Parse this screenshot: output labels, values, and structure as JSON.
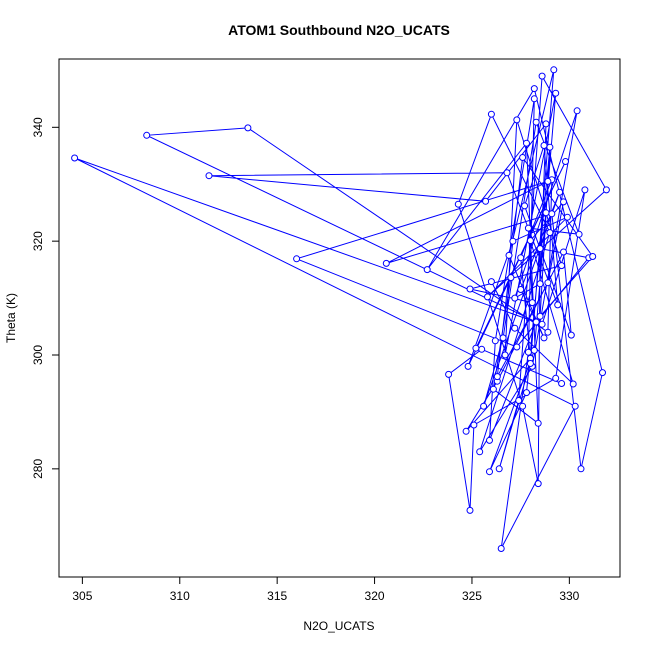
{
  "chart_data": {
    "type": "scatter",
    "title": "ATOM1 Southbound N2O_UCATS",
    "xlabel": "N2O_UCATS",
    "ylabel": "Theta (K)",
    "xlim": [
      303.8,
      332.6
    ],
    "ylim": [
      261,
      352
    ],
    "xticks": [
      "305",
      "310",
      "315",
      "320",
      "325",
      "330"
    ],
    "yticks": [
      "280",
      "300",
      "320",
      "340"
    ],
    "grid": false,
    "legend": "none",
    "colors": {
      "series": "#0000ff",
      "frame": "#000000"
    },
    "series": [
      {
        "points": [
          [
            329.6,
            295.0
          ],
          [
            325.5,
            301.0
          ],
          [
            323.8,
            296.6
          ],
          [
            324.9,
            272.7
          ],
          [
            325.1,
            287.7
          ],
          [
            329.3,
            295.9
          ],
          [
            330.8,
            329.0
          ],
          [
            328.6,
            305.4
          ],
          [
            304.6,
            334.6
          ],
          [
            330.3,
            291.0
          ],
          [
            326.5,
            266.0
          ],
          [
            327.9,
            300.5
          ],
          [
            328.2,
            345.0
          ],
          [
            326.2,
            302.5
          ],
          [
            325.9,
            285.0
          ],
          [
            328.3,
            305.8
          ],
          [
            308.3,
            338.6
          ],
          [
            313.5,
            339.9
          ],
          [
            328.9,
            304.0
          ],
          [
            329.1,
            330.8
          ],
          [
            327.5,
            317.1
          ],
          [
            328.0,
            299.4
          ],
          [
            324.7,
            286.6
          ],
          [
            326.3,
            295.4
          ],
          [
            329.7,
            318.1
          ],
          [
            330.1,
            303.5
          ],
          [
            327.7,
            326.2
          ],
          [
            328.7,
            336.8
          ],
          [
            329.4,
            308.8
          ],
          [
            326.8,
            332.0
          ],
          [
            311.5,
            331.5
          ],
          [
            325.7,
            327.0
          ],
          [
            328.8,
            340.6
          ],
          [
            328.5,
            312.5
          ],
          [
            327.2,
            310.0
          ],
          [
            330.4,
            342.9
          ],
          [
            328.1,
            298.0
          ],
          [
            325.4,
            283.0
          ],
          [
            329.0,
            321.5
          ],
          [
            326.0,
            342.3
          ],
          [
            324.3,
            326.5
          ],
          [
            327.6,
            291.0
          ],
          [
            328.4,
            277.4
          ],
          [
            328.5,
            318.7
          ],
          [
            331.0,
            317.1
          ],
          [
            327.3,
            301.4
          ],
          [
            316.0,
            316.9
          ],
          [
            328.9,
            330.5
          ],
          [
            320.6,
            316.1
          ],
          [
            329.1,
            324.8
          ],
          [
            330.6,
            280.0
          ],
          [
            331.7,
            296.9
          ],
          [
            328.2,
            346.8
          ],
          [
            322.7,
            315.0
          ],
          [
            327.8,
            337.2
          ],
          [
            328.4,
            288.0
          ],
          [
            326.1,
            294.0
          ],
          [
            327.0,
            313.6
          ],
          [
            325.2,
            301.2
          ],
          [
            329.8,
            334.0
          ],
          [
            324.8,
            298.0
          ],
          [
            327.1,
            320.0
          ],
          [
            329.9,
            324.2
          ],
          [
            325.8,
            310.2
          ],
          [
            331.9,
            329.0
          ],
          [
            328.6,
            349.0
          ],
          [
            327.4,
            292.0
          ],
          [
            326.4,
            280.0
          ],
          [
            328.0,
            298.5
          ],
          [
            329.2,
            350.1
          ],
          [
            326.9,
            317.5
          ],
          [
            328.7,
            303.0
          ],
          [
            327.5,
            311.5
          ],
          [
            329.5,
            328.6
          ],
          [
            325.6,
            291.0
          ],
          [
            326.6,
            303.0
          ],
          [
            328.3,
            340.9
          ],
          [
            330.5,
            321.2
          ],
          [
            327.9,
            322.3
          ],
          [
            328.1,
            309.2
          ],
          [
            324.9,
            311.6
          ],
          [
            329.6,
            315.7
          ],
          [
            328.8,
            325.0
          ],
          [
            327.3,
            341.3
          ],
          [
            326.7,
            300.0
          ],
          [
            329.3,
            346.0
          ],
          [
            328.2,
            300.8
          ],
          [
            325.9,
            279.5
          ],
          [
            327.8,
            293.4
          ],
          [
            329.0,
            336.5
          ],
          [
            328.5,
            306.8
          ],
          [
            331.2,
            317.3
          ],
          [
            327.6,
            334.7
          ],
          [
            326.3,
            296.2
          ],
          [
            328.9,
            312.7
          ],
          [
            329.7,
            326.9
          ],
          [
            328.0,
            320.1
          ],
          [
            330.2,
            294.9
          ],
          [
            327.2,
            304.7
          ],
          [
            326.0,
            312.9
          ]
        ]
      }
    ]
  }
}
